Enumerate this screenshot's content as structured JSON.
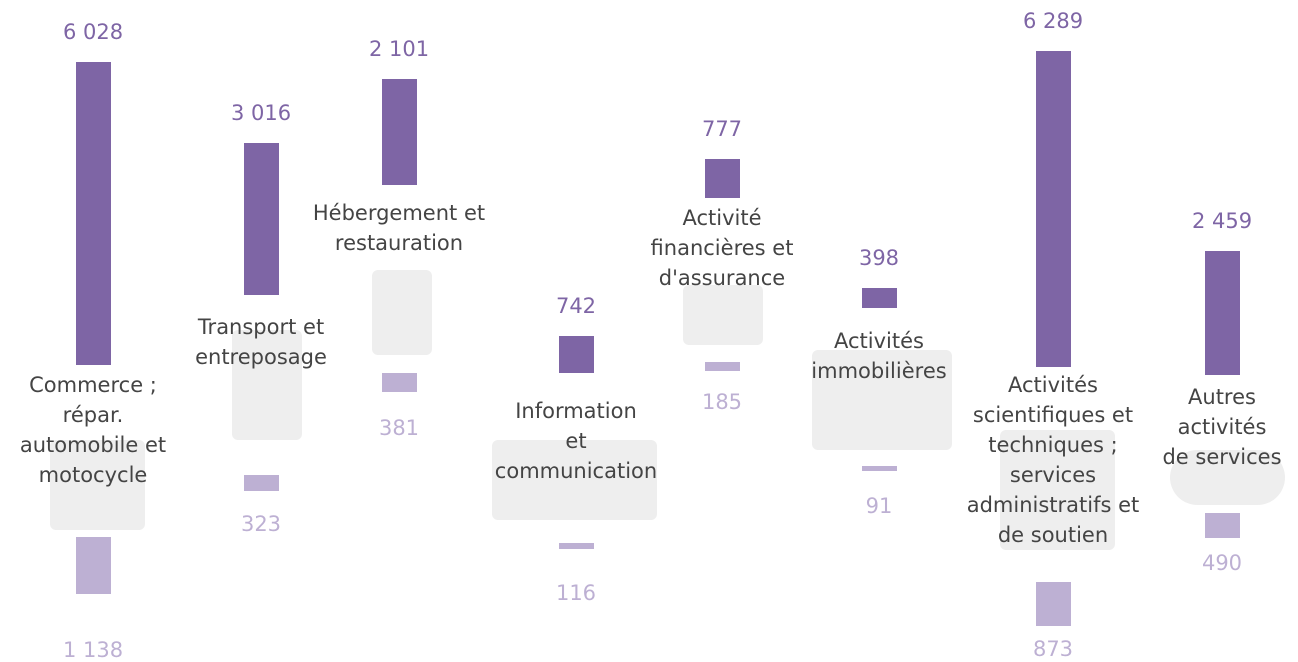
{
  "chart_data": {
    "type": "bar",
    "categories": [
      "Commerce ;\nrépar.\nautomobile et\nmotocycle",
      "Transport et\nentreposage",
      "Hébergement et\nrestauration",
      "Information\net\ncommunication",
      "Activité\nfinancières et\nd'assurance",
      "Activités\nimmobilières",
      "Activités\nscientifiques et\ntechniques ;\nservices\nadministratifs et\nde soutien",
      "Autres\nactivités\nde services"
    ],
    "series": [
      {
        "color": "#7e65a5",
        "values": [
          6028,
          3016,
          2101,
          742,
          777,
          398,
          6289,
          2459
        ],
        "value_labels": [
          "6 028",
          "3 016",
          "2 101",
          "742",
          "777",
          "398",
          "6 289",
          "2 459"
        ]
      },
      {
        "color": "#bdb0d3",
        "values": [
          1138,
          323,
          381,
          116,
          185,
          91,
          873,
          490
        ],
        "value_labels": [
          "1 138",
          "323",
          "381",
          "116",
          "185",
          "91",
          "873",
          "490"
        ]
      }
    ]
  }
}
